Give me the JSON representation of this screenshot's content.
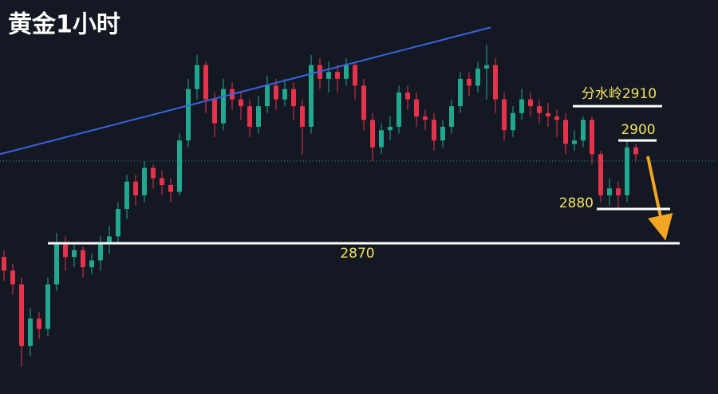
{
  "chart_data": {
    "type": "candlestick",
    "title": "黄金1小时",
    "ylim": [
      2826,
      2941
    ],
    "up_color": "#22a88f",
    "down_color": "#e6334c",
    "open": [
      2866,
      2862,
      2858,
      2840,
      2848,
      2845,
      2858,
      2870,
      2866,
      2868,
      2863,
      2865,
      2870,
      2872,
      2880,
      2888,
      2884,
      2892,
      2889,
      2887,
      2885,
      2900,
      2915,
      2922,
      2912,
      2905,
      2915,
      2912,
      2910,
      2904,
      2910,
      2916,
      2912,
      2915,
      2910,
      2904,
      2922,
      2918,
      2920,
      2918,
      2922,
      2916,
      2906,
      2898,
      2903,
      2904,
      2914,
      2912,
      2907,
      2906,
      2900,
      2904,
      2910,
      2918,
      2916,
      2921,
      2922,
      2912,
      2903,
      2908,
      2912,
      2910,
      2908,
      2907,
      2906,
      2899,
      2900,
      2906,
      2896,
      2884,
      2886,
      2884,
      2898
    ],
    "high": [
      2868,
      2864,
      2860,
      2851,
      2850,
      2860,
      2873,
      2872,
      2870,
      2869,
      2867,
      2872,
      2875,
      2882,
      2890,
      2890,
      2894,
      2893,
      2891,
      2889,
      2902,
      2918,
      2925,
      2923,
      2914,
      2918,
      2917,
      2914,
      2912,
      2913,
      2919,
      2918,
      2918,
      2917,
      2912,
      2925,
      2924,
      2923,
      2922,
      2924,
      2923,
      2918,
      2908,
      2905,
      2907,
      2916,
      2916,
      2914,
      2909,
      2908,
      2906,
      2912,
      2920,
      2920,
      2923,
      2928,
      2924,
      2914,
      2910,
      2915,
      2914,
      2912,
      2911,
      2909,
      2908,
      2903,
      2907,
      2907,
      2897,
      2889,
      2888,
      2900,
      2899
    ],
    "low": [
      2859,
      2855,
      2834,
      2837,
      2842,
      2843,
      2856,
      2862,
      2863,
      2860,
      2861,
      2862,
      2867,
      2870,
      2877,
      2881,
      2882,
      2886,
      2884,
      2882,
      2884,
      2898,
      2912,
      2908,
      2901,
      2903,
      2909,
      2906,
      2901,
      2902,
      2908,
      2909,
      2910,
      2906,
      2896,
      2902,
      2915,
      2914,
      2914,
      2916,
      2912,
      2903,
      2894,
      2896,
      2900,
      2902,
      2909,
      2904,
      2903,
      2897,
      2898,
      2902,
      2908,
      2913,
      2914,
      2912,
      2908,
      2900,
      2901,
      2906,
      2907,
      2905,
      2904,
      2901,
      2896,
      2897,
      2898,
      2893,
      2882,
      2881,
      2880,
      2882,
      2894
    ],
    "close": [
      2862,
      2858,
      2840,
      2848,
      2845,
      2858,
      2870,
      2866,
      2868,
      2863,
      2865,
      2870,
      2872,
      2880,
      2888,
      2884,
      2892,
      2889,
      2887,
      2885,
      2900,
      2915,
      2922,
      2912,
      2905,
      2915,
      2912,
      2910,
      2904,
      2910,
      2916,
      2912,
      2915,
      2910,
      2904,
      2922,
      2918,
      2920,
      2918,
      2922,
      2916,
      2906,
      2898,
      2903,
      2904,
      2914,
      2912,
      2907,
      2906,
      2900,
      2904,
      2910,
      2918,
      2916,
      2921,
      2922,
      2912,
      2903,
      2908,
      2912,
      2910,
      2908,
      2907,
      2906,
      2899,
      2900,
      2906,
      2896,
      2884,
      2886,
      2884,
      2898,
      2896
    ],
    "last_price": 2894,
    "trend_line": {
      "color": "#3a63e0",
      "values": [
        2896,
        2933
      ]
    },
    "levels": [
      {
        "value": 2910,
        "label": "分水岭2910"
      },
      {
        "value": 2900,
        "label": "2900"
      },
      {
        "value": 2880,
        "label": "2880"
      },
      {
        "value": 2870,
        "label": "2870"
      }
    ]
  }
}
